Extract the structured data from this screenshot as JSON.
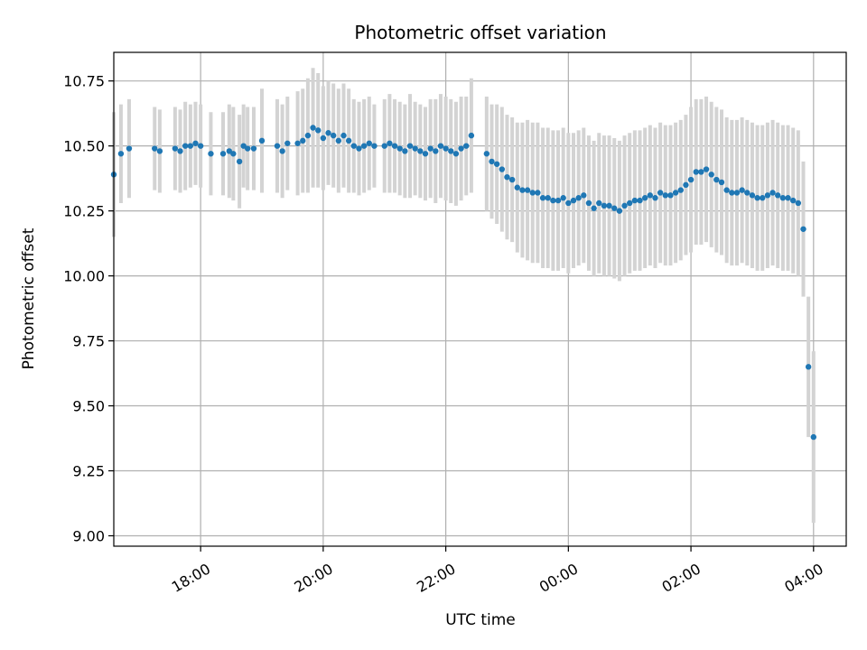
{
  "chart_data": {
    "type": "scatter",
    "title": "Photometric offset variation",
    "xlabel": "UTC time",
    "ylabel": "Photometric offset",
    "xlim": [
      "16:35",
      "04:32"
    ],
    "ylim": [
      8.96,
      10.86
    ],
    "x_tick_labels": [
      "18:00",
      "20:00",
      "22:00",
      "00:00",
      "02:00",
      "04:00"
    ],
    "y_tick_labels": [
      "9.00",
      "9.25",
      "9.50",
      "9.75",
      "10.00",
      "10.25",
      "10.50",
      "10.75"
    ],
    "grid": true,
    "colors": {
      "points": "#1f77b4",
      "errorbars": "#d3d3d3",
      "grid": "#b0b0b0"
    },
    "series": [
      {
        "x": [
          "16:35",
          "16:42",
          "16:50",
          "17:15",
          "17:20",
          "17:35",
          "17:40",
          "17:45",
          "17:50",
          "17:55",
          "18:00",
          "18:10",
          "18:22",
          "18:28",
          "18:32",
          "18:38",
          "18:42",
          "18:46",
          "18:52",
          "19:00",
          "19:15",
          "19:20",
          "19:25",
          "19:35",
          "19:40",
          "19:45",
          "19:50",
          "19:55",
          "20:00",
          "20:05",
          "20:10",
          "20:15",
          "20:20",
          "20:25",
          "20:30",
          "20:35",
          "20:40",
          "20:45",
          "20:50",
          "21:00",
          "21:05",
          "21:10",
          "21:15",
          "21:20",
          "21:25",
          "21:30",
          "21:35",
          "21:40",
          "21:45",
          "21:50",
          "21:55",
          "22:00",
          "22:05",
          "22:10",
          "22:15",
          "22:20",
          "22:25",
          "22:40",
          "22:45",
          "22:50",
          "22:55",
          "23:00",
          "23:05",
          "23:10",
          "23:15",
          "23:20",
          "23:25",
          "23:30",
          "23:35",
          "23:40",
          "23:45",
          "23:50",
          "23:55",
          "00:00",
          "00:05",
          "00:10",
          "00:15",
          "00:20",
          "00:25",
          "00:30",
          "00:35",
          "00:40",
          "00:45",
          "00:50",
          "00:55",
          "01:00",
          "01:05",
          "01:10",
          "01:15",
          "01:20",
          "01:25",
          "01:30",
          "01:35",
          "01:40",
          "01:45",
          "01:50",
          "01:55",
          "02:00",
          "02:05",
          "02:10",
          "02:15",
          "02:20",
          "02:25",
          "02:30",
          "02:35",
          "02:40",
          "02:45",
          "02:50",
          "02:55",
          "03:00",
          "03:05",
          "03:10",
          "03:15",
          "03:20",
          "03:25",
          "03:30",
          "03:35",
          "03:40",
          "03:45",
          "03:50",
          "03:55",
          "04:00"
        ],
        "y": [
          10.39,
          10.47,
          10.49,
          10.49,
          10.48,
          10.49,
          10.48,
          10.5,
          10.5,
          10.51,
          10.5,
          10.47,
          10.47,
          10.48,
          10.47,
          10.44,
          10.5,
          10.49,
          10.49,
          10.52,
          10.5,
          10.48,
          10.51,
          10.51,
          10.52,
          10.54,
          10.57,
          10.56,
          10.53,
          10.55,
          10.54,
          10.52,
          10.54,
          10.52,
          10.5,
          10.49,
          10.5,
          10.51,
          10.5,
          10.5,
          10.51,
          10.5,
          10.49,
          10.48,
          10.5,
          10.49,
          10.48,
          10.47,
          10.49,
          10.48,
          10.5,
          10.49,
          10.48,
          10.47,
          10.49,
          10.5,
          10.54,
          10.47,
          10.44,
          10.43,
          10.41,
          10.38,
          10.37,
          10.34,
          10.33,
          10.33,
          10.32,
          10.32,
          10.3,
          10.3,
          10.29,
          10.29,
          10.3,
          10.28,
          10.29,
          10.3,
          10.31,
          10.28,
          10.26,
          10.28,
          10.27,
          10.27,
          10.26,
          10.25,
          10.27,
          10.28,
          10.29,
          10.29,
          10.3,
          10.31,
          10.3,
          10.32,
          10.31,
          10.31,
          10.32,
          10.33,
          10.35,
          10.37,
          10.4,
          10.4,
          10.41,
          10.39,
          10.37,
          10.36,
          10.33,
          10.32,
          10.32,
          10.33,
          10.32,
          10.31,
          10.3,
          10.3,
          10.31,
          10.32,
          10.31,
          10.3,
          10.3,
          10.29,
          10.28,
          10.18,
          9.65,
          9.38
        ],
        "yerr": [
          0.24,
          0.19,
          0.19,
          0.16,
          0.16,
          0.16,
          0.16,
          0.17,
          0.16,
          0.16,
          0.16,
          0.16,
          0.16,
          0.18,
          0.18,
          0.18,
          0.16,
          0.16,
          0.16,
          0.2,
          0.18,
          0.18,
          0.18,
          0.2,
          0.2,
          0.22,
          0.23,
          0.22,
          0.2,
          0.2,
          0.2,
          0.2,
          0.2,
          0.2,
          0.18,
          0.18,
          0.18,
          0.18,
          0.16,
          0.18,
          0.19,
          0.18,
          0.18,
          0.18,
          0.2,
          0.18,
          0.18,
          0.18,
          0.19,
          0.2,
          0.2,
          0.2,
          0.2,
          0.2,
          0.2,
          0.19,
          0.22,
          0.22,
          0.22,
          0.23,
          0.24,
          0.24,
          0.24,
          0.25,
          0.26,
          0.27,
          0.27,
          0.27,
          0.27,
          0.27,
          0.27,
          0.27,
          0.27,
          0.27,
          0.26,
          0.26,
          0.26,
          0.26,
          0.26,
          0.27,
          0.27,
          0.27,
          0.27,
          0.27,
          0.27,
          0.27,
          0.27,
          0.27,
          0.27,
          0.27,
          0.27,
          0.27,
          0.27,
          0.27,
          0.27,
          0.27,
          0.27,
          0.28,
          0.28,
          0.28,
          0.28,
          0.28,
          0.28,
          0.28,
          0.28,
          0.28,
          0.28,
          0.28,
          0.28,
          0.28,
          0.28,
          0.28,
          0.28,
          0.28,
          0.28,
          0.28,
          0.28,
          0.28,
          0.28,
          0.26,
          0.27,
          0.33
        ]
      }
    ]
  }
}
